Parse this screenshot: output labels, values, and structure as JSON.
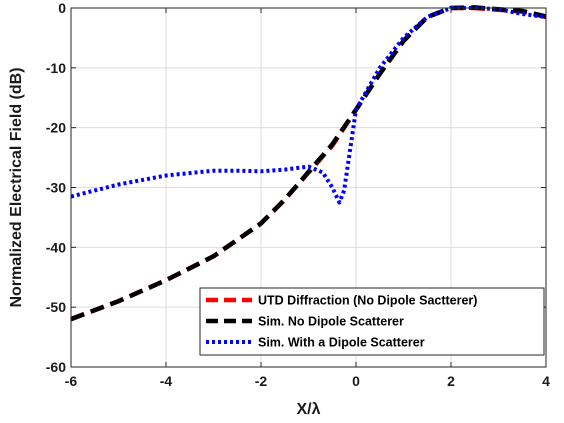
{
  "chart_data": {
    "type": "line",
    "xlabel": "X/λ",
    "ylabel": "Normalized Electrical Field (dB)",
    "xlim": [
      -6,
      4
    ],
    "ylim": [
      -60,
      0
    ],
    "xticks": [
      -6,
      -4,
      -2,
      0,
      2,
      4
    ],
    "yticks": [
      0,
      -10,
      -20,
      -30,
      -40,
      -50,
      -60
    ],
    "grid": true,
    "legend_position": "bottom-right",
    "series": [
      {
        "name": "UTD Diffraction (No Dipole Sactterer)",
        "color": "#ff0000",
        "style": "dashed",
        "x": [
          -6,
          -5,
          -4,
          -3,
          -2,
          -1.5,
          -1,
          -0.5,
          0,
          0.5,
          1,
          1.5,
          2,
          2.5,
          3,
          3.5,
          4
        ],
        "y": [
          -52,
          -49,
          -45.5,
          -41.5,
          -36,
          -32,
          -27.5,
          -23,
          -17,
          -11,
          -5.5,
          -1.5,
          0,
          0,
          -0.3,
          -0.6,
          -1.5
        ]
      },
      {
        "name": "Sim. No Dipole Scatterer",
        "color": "#000000",
        "style": "dashed",
        "x": [
          -6,
          -5,
          -4,
          -3,
          -2,
          -1.5,
          -1,
          -0.5,
          0,
          0.5,
          1,
          1.5,
          2,
          2.5,
          3,
          3.5,
          4
        ],
        "y": [
          -52,
          -49,
          -45.5,
          -41.5,
          -36,
          -32,
          -27.4,
          -22.8,
          -17,
          -11,
          -5.5,
          -1.5,
          0,
          0.1,
          -0.2,
          -0.5,
          -1.4
        ]
      },
      {
        "name": "Sim. With a Dipole Scatterer",
        "color": "#0000ff",
        "style": "dotted",
        "x": [
          -6,
          -5,
          -4,
          -3,
          -2.5,
          -2,
          -1.5,
          -1,
          -0.7,
          -0.5,
          -0.35,
          -0.25,
          0,
          0.5,
          1,
          1.5,
          2,
          2.5,
          3,
          3.5,
          4
        ],
        "y": [
          -31.5,
          -29.5,
          -28,
          -27.2,
          -27.2,
          -27.3,
          -27,
          -26.5,
          -27.5,
          -30,
          -32.5,
          -30.5,
          -17,
          -10,
          -5,
          -1.5,
          0,
          0,
          -0.2,
          -1,
          -1.5
        ]
      }
    ]
  }
}
